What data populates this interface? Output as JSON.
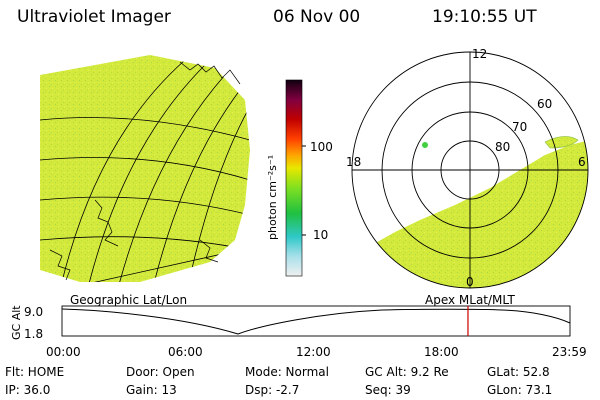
{
  "header": {
    "title": "Ultraviolet Imager",
    "date": "06 Nov 00",
    "time": "19:10:55 UT"
  },
  "colorbar": {
    "unit_label": "photon cm⁻²s⁻¹",
    "tick_100": "100",
    "tick_10": "10"
  },
  "polar_plot": {
    "lat_labels": [
      "80",
      "70",
      "60"
    ],
    "mlt_labels": {
      "top": "12",
      "left": "18",
      "right": "6",
      "bottom": "0"
    }
  },
  "coord_labels": {
    "left": "Geographic Lat/Lon",
    "right": "Apex MLat/MLT"
  },
  "altitude_plot": {
    "axis_title": "GC Alt",
    "y_top": "9.0",
    "y_bottom": "1.8",
    "time_ticks": [
      "00:00",
      "06:00",
      "12:00",
      "18:00",
      "23:59"
    ],
    "marker_time_hours": 19.18
  },
  "info": {
    "row1": {
      "flt": "Flt: HOME",
      "door": "Door: Open",
      "mode": "Mode: Normal",
      "gcalt": "GC Alt: 9.2 Re",
      "glat": "GLat:  52.8"
    },
    "row2": {
      "ip": "IP: 36.0",
      "gain": "Gain: 13",
      "dsp": "Dsp:    -2.7",
      "seq": "Seq: 39",
      "glon": "GLon:  73.1"
    }
  },
  "colors": {
    "image_fill": "#d6ec3a",
    "marker_line": "#cc0000"
  }
}
